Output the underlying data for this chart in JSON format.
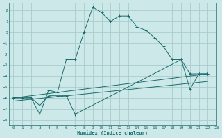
{
  "xlabel": "Humidex (Indice chaleur)",
  "bg_color": "#cce8e8",
  "grid_color": "#aacccc",
  "line_color": "#1a6b6b",
  "xlim": [
    -0.5,
    23
  ],
  "ylim": [
    -8.5,
    2.7
  ],
  "xticks": [
    0,
    1,
    2,
    3,
    4,
    5,
    6,
    7,
    8,
    9,
    10,
    11,
    12,
    13,
    14,
    15,
    16,
    17,
    18,
    19,
    20,
    21,
    22,
    23
  ],
  "yticks": [
    -8,
    -7,
    -6,
    -5,
    -4,
    -3,
    -2,
    -1,
    0,
    1,
    2
  ],
  "line1_x": [
    0,
    1,
    2,
    3,
    4,
    5,
    6,
    7,
    8,
    9,
    10,
    11,
    12,
    13,
    14,
    15,
    16,
    17,
    18,
    19,
    20,
    21,
    22
  ],
  "line1_y": [
    -6.0,
    -6.0,
    -6.0,
    -7.5,
    -5.3,
    -5.5,
    -2.5,
    -2.5,
    0.0,
    2.3,
    1.8,
    1.0,
    1.5,
    1.5,
    0.5,
    0.2,
    -0.5,
    -1.3,
    -2.5,
    -2.5,
    -3.8,
    -3.8,
    -3.8
  ],
  "line2_x": [
    0,
    2,
    3,
    4,
    5,
    6,
    7,
    19,
    20,
    21,
    22
  ],
  "line2_y": [
    -6.0,
    -6.0,
    -6.7,
    -5.8,
    -5.8,
    -5.8,
    -7.5,
    -2.5,
    -5.2,
    -3.8,
    -3.8
  ],
  "line3_x": [
    0,
    22
  ],
  "line3_y": [
    -6.0,
    -3.8
  ],
  "line4_x": [
    0,
    22
  ],
  "line4_y": [
    -6.3,
    -4.5
  ]
}
